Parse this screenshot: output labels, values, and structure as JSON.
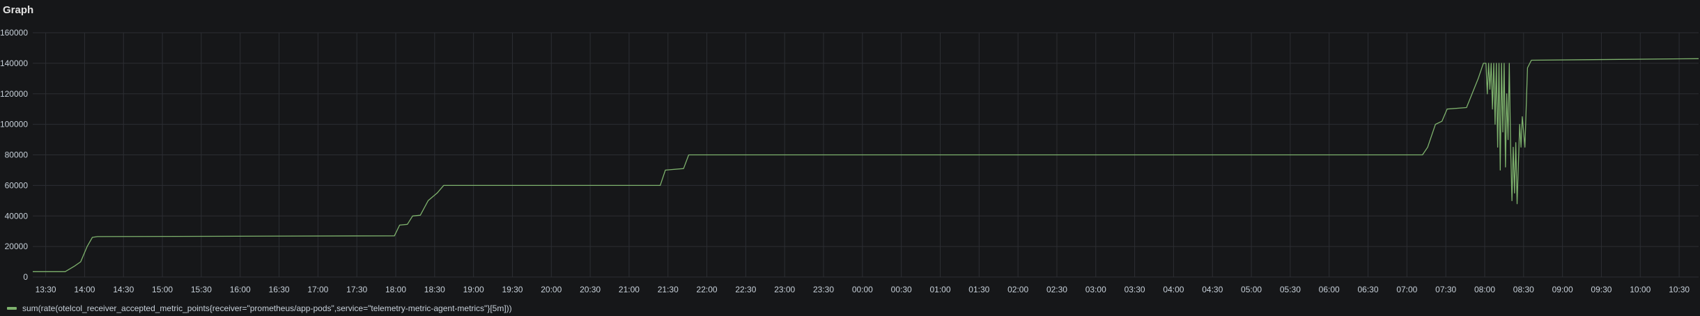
{
  "panel": {
    "title": "Graph"
  },
  "colors": {
    "series": "#7eb26d",
    "grid": "#2c2e33",
    "axis_text": "#c7d0d9",
    "background": "#161719"
  },
  "chart_data": {
    "type": "line",
    "title": "Graph",
    "xlabel": "",
    "ylabel": "",
    "grid": true,
    "legend_position": "bottom-left",
    "y_ticks": [
      "0",
      "20000",
      "40000",
      "60000",
      "80000",
      "100000",
      "120000",
      "140000",
      "160000"
    ],
    "ylim": [
      0,
      160000
    ],
    "x_ticks": [
      "13:30",
      "14:00",
      "14:30",
      "15:00",
      "15:30",
      "16:00",
      "16:30",
      "17:00",
      "17:30",
      "18:00",
      "18:30",
      "19:00",
      "19:30",
      "20:00",
      "20:30",
      "21:00",
      "21:30",
      "22:00",
      "22:30",
      "23:00",
      "23:30",
      "00:00",
      "00:30",
      "01:00",
      "01:30",
      "02:00",
      "02:30",
      "03:00",
      "03:30",
      "04:00",
      "04:30",
      "05:00",
      "05:30",
      "06:00",
      "06:30",
      "07:00",
      "07:30",
      "08:00",
      "08:30",
      "09:00",
      "09:30",
      "10:00",
      "10:30"
    ],
    "x_range": [
      "13:20",
      "10:45"
    ],
    "series": [
      {
        "name": "sum(rate(otelcol_receiver_accepted_metric_points{receiver=\"prometheus/app-pods\",service=\"telemetry-metric-agent-metrics\"}[5m]))",
        "points": [
          [
            "13:20",
            3500
          ],
          [
            "13:45",
            3500
          ],
          [
            "13:52",
            7000
          ],
          [
            "13:57",
            10000
          ],
          [
            "14:02",
            20000
          ],
          [
            "14:06",
            26000
          ],
          [
            "14:10",
            26500
          ],
          [
            "17:59",
            27000
          ],
          [
            "18:03",
            34000
          ],
          [
            "18:09",
            34500
          ],
          [
            "18:13",
            40000
          ],
          [
            "18:19",
            40500
          ],
          [
            "18:25",
            50000
          ],
          [
            "18:32",
            55000
          ],
          [
            "18:37",
            60000
          ],
          [
            "21:24",
            60000
          ],
          [
            "21:28",
            70000
          ],
          [
            "21:42",
            71000
          ],
          [
            "21:46",
            80000
          ],
          [
            "07:12",
            80000
          ],
          [
            "07:16",
            85000
          ],
          [
            "07:22",
            100000
          ],
          [
            "07:27",
            102000
          ],
          [
            "07:31",
            110000
          ],
          [
            "07:46",
            111000
          ],
          [
            "07:55",
            130000
          ],
          [
            "07:59",
            140000
          ],
          [
            "08:01",
            140000
          ],
          [
            "08:02",
            120000
          ],
          [
            "08:03",
            140000
          ],
          [
            "08:04",
            123000
          ],
          [
            "08:05",
            140000
          ],
          [
            "08:06",
            110000
          ],
          [
            "08:07",
            140000
          ],
          [
            "08:08",
            100000
          ],
          [
            "08:09",
            140000
          ],
          [
            "08:10",
            85000
          ],
          [
            "08:11",
            140000
          ],
          [
            "08:12",
            70000
          ],
          [
            "08:13",
            140000
          ],
          [
            "08:14",
            95000
          ],
          [
            "08:15",
            140000
          ],
          [
            "08:16",
            72000
          ],
          [
            "08:17",
            120000
          ],
          [
            "08:18",
            90000
          ],
          [
            "08:19",
            140000
          ],
          [
            "08:20",
            85000
          ],
          [
            "08:21",
            50000
          ],
          [
            "08:22",
            85000
          ],
          [
            "08:23",
            55000
          ],
          [
            "08:24",
            88000
          ],
          [
            "08:25",
            48000
          ],
          [
            "08:27",
            100000
          ],
          [
            "08:28",
            85000
          ],
          [
            "08:29",
            105000
          ],
          [
            "08:31",
            85000
          ],
          [
            "08:33",
            137000
          ],
          [
            "08:36",
            142000
          ],
          [
            "10:45",
            143000
          ]
        ]
      }
    ]
  },
  "legend": {
    "label": "sum(rate(otelcol_receiver_accepted_metric_points{receiver=\"prometheus/app-pods\",service=\"telemetry-metric-agent-metrics\"}[5m]))"
  }
}
